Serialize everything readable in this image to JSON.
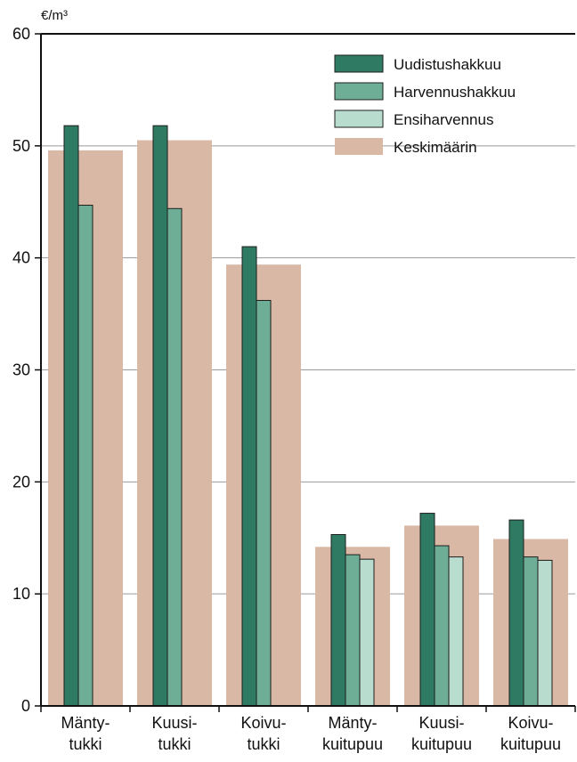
{
  "chart_data": {
    "type": "bar",
    "title": "",
    "ylabel": "€/m³",
    "xlabel": "",
    "ylim": [
      0,
      60
    ],
    "yticks": [
      0,
      10,
      20,
      30,
      40,
      50,
      60
    ],
    "grid": true,
    "legend_position": "top-right",
    "categories": [
      [
        "Mänty-",
        "tukki"
      ],
      [
        "Kuusi-",
        "tukki"
      ],
      [
        "Koivu-",
        "tukki"
      ],
      [
        "Mänty-",
        "kuitupuu"
      ],
      [
        "Kuusi-",
        "kuitupuu"
      ],
      [
        "Koivu-",
        "kuitupuu"
      ]
    ],
    "background_series": {
      "name": "Keskimäärin",
      "color": "#d9b8a6",
      "values": [
        49.6,
        50.5,
        39.4,
        14.2,
        16.1,
        14.9
      ]
    },
    "series": [
      {
        "name": "Uudistushakkuu",
        "color": "#2e7a62",
        "values": [
          51.8,
          51.8,
          41.0,
          15.3,
          17.2,
          16.6
        ]
      },
      {
        "name": "Harvennushakkuu",
        "color": "#6fae96",
        "values": [
          44.7,
          44.4,
          36.2,
          13.5,
          14.3,
          13.3
        ]
      },
      {
        "name": "Ensiharvennus",
        "color": "#b8dccd",
        "values": [
          null,
          null,
          null,
          13.1,
          13.3,
          13.0
        ]
      }
    ]
  }
}
